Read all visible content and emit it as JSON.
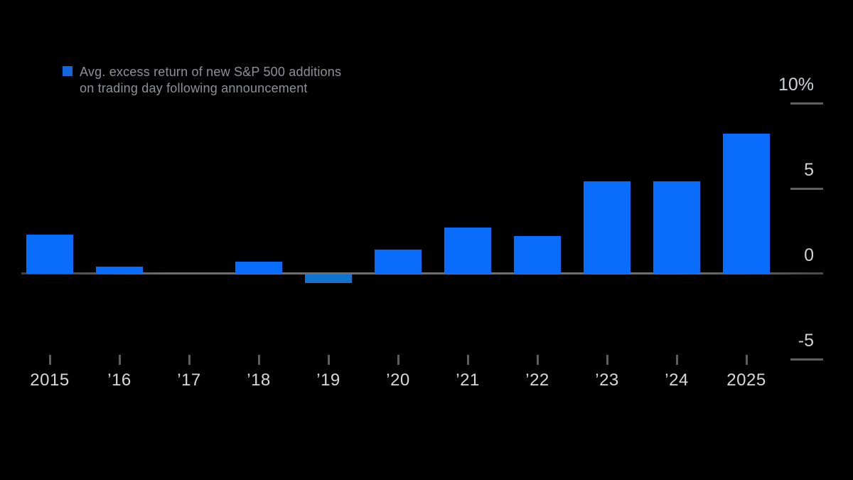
{
  "legend": {
    "line1": "Avg. excess return of new S&P 500 additions",
    "line2": "on trading day following announcement"
  },
  "chart_data": {
    "type": "bar",
    "title": "",
    "legend_label": "Avg. excess return of new S&P 500 additions on trading day following announcement",
    "legend_position": "top-left",
    "categories": [
      "2015",
      "’16",
      "’17",
      "’18",
      "’19",
      "’20",
      "’21",
      "’22",
      "’23",
      "’24",
      "2025"
    ],
    "values": [
      2.3,
      0.4,
      0,
      0.7,
      -0.5,
      1.4,
      2.7,
      2.2,
      5.4,
      5.4,
      8.2
    ],
    "unit": "%",
    "xlabel": "",
    "ylabel": "",
    "y_ticks": [
      {
        "value": 10,
        "label": "10%"
      },
      {
        "value": 5,
        "label": "5"
      },
      {
        "value": 0,
        "label": "0"
      },
      {
        "value": -5,
        "label": "-5"
      }
    ],
    "ylim": [
      -7,
      10.5
    ],
    "grid": false,
    "colors": {
      "bar": "#0a6cfa",
      "negative_bar": "#1173d0",
      "legend_swatch": "#1566dd",
      "background": "#000000",
      "axis_line": "#6e6e6e",
      "tick": "#5f5f5f",
      "y_label_text": "#ced1d4",
      "x_label_text": "#d6d8da",
      "legend_text": "#8d9196"
    }
  }
}
